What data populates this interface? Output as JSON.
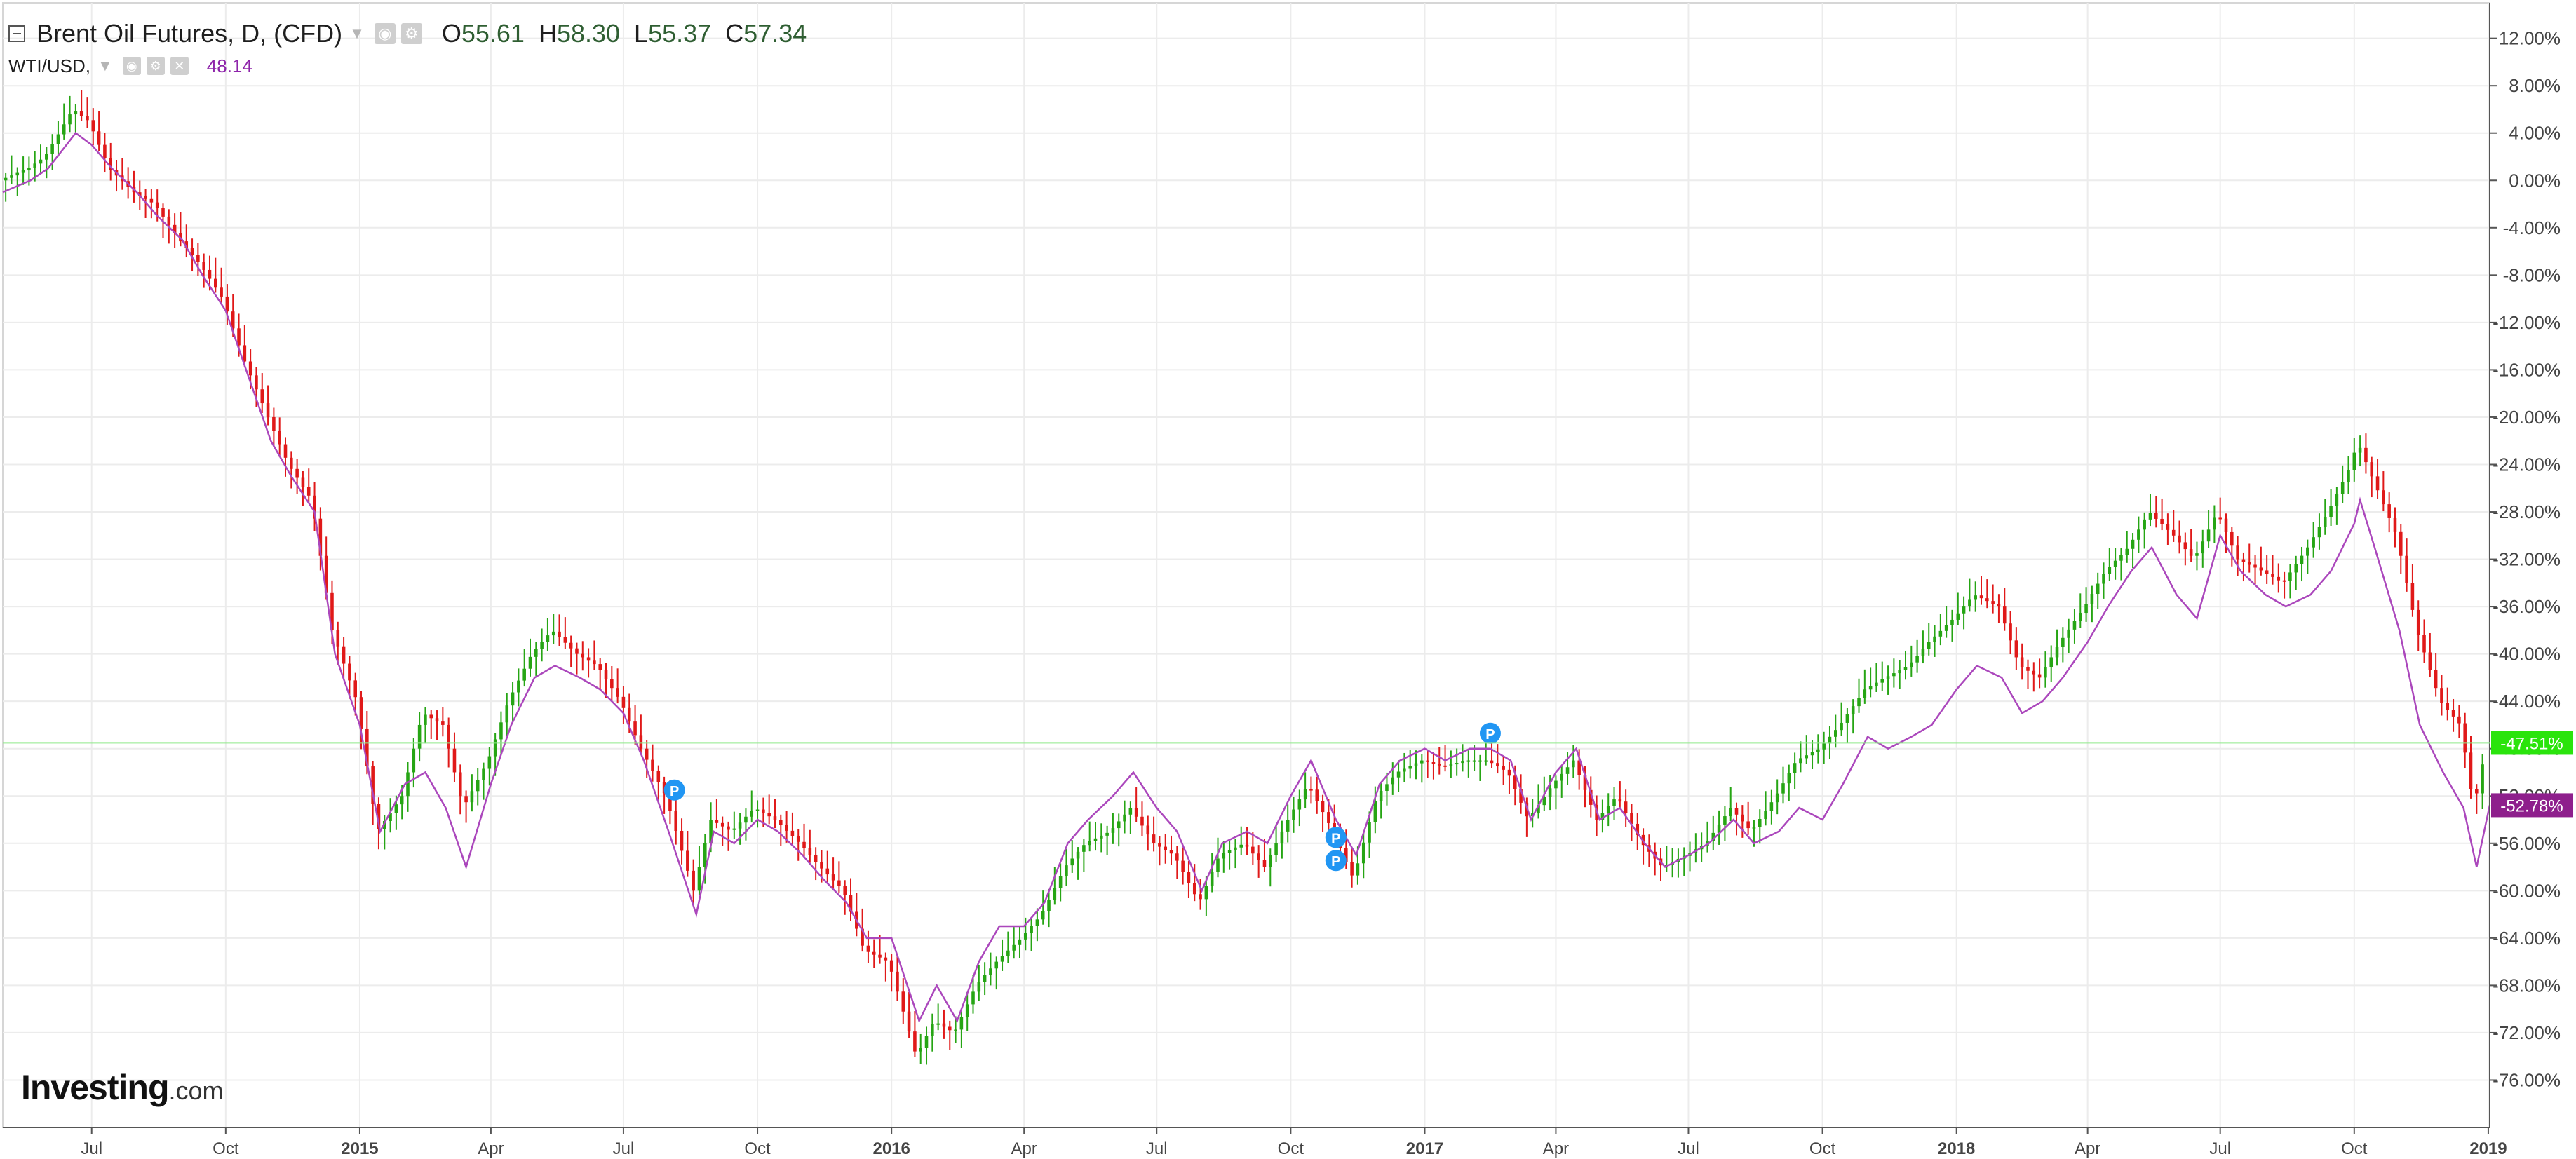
{
  "legend": {
    "main_title": "Brent Oil Futures, D, (CFD)",
    "ohlc": {
      "o_label": "O",
      "o": "55.61",
      "h_label": "H",
      "h": "58.30",
      "l_label": "L",
      "l": "55.37",
      "c_label": "C",
      "c": "57.34"
    },
    "compare_title": "WTI/USD,",
    "compare_value": "48.14"
  },
  "brand": {
    "main": "Investing",
    "domain": ".com"
  },
  "colors": {
    "up_candle": "#26a514",
    "down_candle": "#e01919",
    "wti_line": "#ab47bc",
    "brent_label_bg": "#2ae40c",
    "wti_label_bg": "#8e1f8c",
    "grid": "#ececec",
    "axis_text": "#444444",
    "marker": "#2196f3"
  },
  "chart_data": {
    "type": "line",
    "title": "",
    "xlabel": "",
    "ylabel": "",
    "x_ticks": [
      "Jul",
      "Oct",
      "2015",
      "Apr",
      "Jul",
      "Oct",
      "2016",
      "Apr",
      "Jul",
      "Oct",
      "2017",
      "Apr",
      "Jul",
      "Oct",
      "2018",
      "Apr",
      "Jul",
      "Oct",
      "2019"
    ],
    "x_ticks_bold": [
      "2015",
      "2016",
      "2017",
      "2018",
      "2019"
    ],
    "y_ticks": [
      "12.00%",
      "8.00%",
      "4.00%",
      "0.00%",
      "-4.00%",
      "-8.00%",
      "-12.00%",
      "-16.00%",
      "-20.00%",
      "-24.00%",
      "-28.00%",
      "-32.00%",
      "-36.00%",
      "-40.00%",
      "-44.00%",
      "-48.00%",
      "-52.00%",
      "-56.00%",
      "-60.00%",
      "-64.00%",
      "-68.00%",
      "-72.00%",
      "-76.00%"
    ],
    "ylim": [
      -80,
      15
    ],
    "x_range": [
      "2014-05-01",
      "2019-01-02"
    ],
    "series": [
      {
        "name": "Brent Oil Futures",
        "style": "candlestick",
        "points": [
          [
            "2014-05-01",
            0
          ],
          [
            "2014-05-20",
            1
          ],
          [
            "2014-06-01",
            2
          ],
          [
            "2014-06-20",
            6
          ],
          [
            "2014-07-01",
            5
          ],
          [
            "2014-07-15",
            1
          ],
          [
            "2014-08-01",
            -1
          ],
          [
            "2014-08-15",
            -2
          ],
          [
            "2014-09-01",
            -5
          ],
          [
            "2014-09-15",
            -7
          ],
          [
            "2014-10-01",
            -10
          ],
          [
            "2014-10-15",
            -15
          ],
          [
            "2014-11-01",
            -20
          ],
          [
            "2014-11-15",
            -24
          ],
          [
            "2014-12-01",
            -27
          ],
          [
            "2014-12-15",
            -38
          ],
          [
            "2015-01-01",
            -44
          ],
          [
            "2015-01-15",
            -55
          ],
          [
            "2015-02-01",
            -52
          ],
          [
            "2015-02-15",
            -45
          ],
          [
            "2015-03-01",
            -46
          ],
          [
            "2015-03-15",
            -53
          ],
          [
            "2015-04-01",
            -49
          ],
          [
            "2015-04-15",
            -44
          ],
          [
            "2015-05-01",
            -40
          ],
          [
            "2015-05-15",
            -38
          ],
          [
            "2015-06-01",
            -40
          ],
          [
            "2015-06-15",
            -41
          ],
          [
            "2015-07-01",
            -44
          ],
          [
            "2015-07-15",
            -48
          ],
          [
            "2015-08-01",
            -52
          ],
          [
            "2015-08-20",
            -60
          ],
          [
            "2015-09-01",
            -54
          ],
          [
            "2015-09-15",
            -55
          ],
          [
            "2015-10-01",
            -53
          ],
          [
            "2015-10-15",
            -54
          ],
          [
            "2015-11-01",
            -56
          ],
          [
            "2015-11-15",
            -58
          ],
          [
            "2015-12-01",
            -60
          ],
          [
            "2015-12-15",
            -65
          ],
          [
            "2016-01-01",
            -66
          ],
          [
            "2016-01-20",
            -74
          ],
          [
            "2016-02-01",
            -71
          ],
          [
            "2016-02-15",
            -72
          ],
          [
            "2016-03-01",
            -68
          ],
          [
            "2016-03-15",
            -66
          ],
          [
            "2016-04-01",
            -64
          ],
          [
            "2016-04-15",
            -62
          ],
          [
            "2016-05-01",
            -58
          ],
          [
            "2016-05-15",
            -56
          ],
          [
            "2016-06-01",
            -55
          ],
          [
            "2016-06-15",
            -53
          ],
          [
            "2016-07-01",
            -56
          ],
          [
            "2016-07-15",
            -57
          ],
          [
            "2016-08-01",
            -61
          ],
          [
            "2016-08-15",
            -57
          ],
          [
            "2016-09-01",
            -56
          ],
          [
            "2016-09-15",
            -58
          ],
          [
            "2016-10-01",
            -54
          ],
          [
            "2016-10-15",
            -51
          ],
          [
            "2016-11-01",
            -55
          ],
          [
            "2016-11-15",
            -59
          ],
          [
            "2016-12-01",
            -52
          ],
          [
            "2016-12-15",
            -50
          ],
          [
            "2017-01-01",
            -49
          ],
          [
            "2017-01-15",
            -49.5
          ],
          [
            "2017-02-01",
            -49
          ],
          [
            "2017-02-15",
            -49
          ],
          [
            "2017-03-01",
            -50
          ],
          [
            "2017-03-15",
            -54
          ],
          [
            "2017-04-01",
            -51
          ],
          [
            "2017-04-15",
            -49
          ],
          [
            "2017-05-01",
            -54
          ],
          [
            "2017-05-15",
            -52
          ],
          [
            "2017-06-01",
            -56
          ],
          [
            "2017-06-15",
            -58
          ],
          [
            "2017-07-01",
            -57
          ],
          [
            "2017-07-15",
            -56
          ],
          [
            "2017-08-01",
            -53
          ],
          [
            "2017-08-15",
            -55
          ],
          [
            "2017-09-01",
            -52
          ],
          [
            "2017-09-15",
            -49
          ],
          [
            "2017-10-01",
            -48
          ],
          [
            "2017-10-15",
            -46
          ],
          [
            "2017-11-01",
            -43
          ],
          [
            "2017-11-15",
            -42
          ],
          [
            "2017-12-01",
            -41
          ],
          [
            "2017-12-15",
            -39
          ],
          [
            "2018-01-01",
            -37
          ],
          [
            "2018-01-15",
            -35
          ],
          [
            "2018-02-01",
            -36
          ],
          [
            "2018-02-15",
            -41
          ],
          [
            "2018-03-01",
            -42
          ],
          [
            "2018-03-15",
            -39
          ],
          [
            "2018-04-01",
            -36
          ],
          [
            "2018-04-15",
            -33
          ],
          [
            "2018-05-01",
            -31
          ],
          [
            "2018-05-15",
            -28
          ],
          [
            "2018-06-01",
            -30
          ],
          [
            "2018-06-15",
            -32
          ],
          [
            "2018-07-01",
            -28
          ],
          [
            "2018-07-15",
            -32
          ],
          [
            "2018-08-01",
            -33
          ],
          [
            "2018-08-15",
            -34
          ],
          [
            "2018-09-01",
            -31
          ],
          [
            "2018-09-15",
            -28
          ],
          [
            "2018-10-01",
            -24
          ],
          [
            "2018-10-05",
            -22
          ],
          [
            "2018-10-15",
            -25
          ],
          [
            "2018-11-01",
            -30
          ],
          [
            "2018-11-15",
            -38
          ],
          [
            "2018-12-01",
            -44
          ],
          [
            "2018-12-15",
            -46
          ],
          [
            "2018-12-24",
            -53
          ],
          [
            "2019-01-02",
            -47.5
          ]
        ]
      },
      {
        "name": "WTI/USD",
        "style": "line",
        "points": [
          [
            "2014-05-01",
            -1
          ],
          [
            "2014-05-20",
            0
          ],
          [
            "2014-06-01",
            1
          ],
          [
            "2014-06-20",
            4
          ],
          [
            "2014-07-01",
            3
          ],
          [
            "2014-07-15",
            1
          ],
          [
            "2014-08-01",
            -1
          ],
          [
            "2014-08-15",
            -3
          ],
          [
            "2014-09-01",
            -5
          ],
          [
            "2014-09-15",
            -8
          ],
          [
            "2014-10-01",
            -11
          ],
          [
            "2014-10-15",
            -16
          ],
          [
            "2014-11-01",
            -22
          ],
          [
            "2014-11-15",
            -25
          ],
          [
            "2014-12-01",
            -28
          ],
          [
            "2014-12-15",
            -40
          ],
          [
            "2015-01-01",
            -46
          ],
          [
            "2015-01-15",
            -55
          ],
          [
            "2015-02-01",
            -51
          ],
          [
            "2015-02-15",
            -50
          ],
          [
            "2015-03-01",
            -53
          ],
          [
            "2015-03-15",
            -58
          ],
          [
            "2015-04-01",
            -51
          ],
          [
            "2015-04-15",
            -46
          ],
          [
            "2015-05-01",
            -42
          ],
          [
            "2015-05-15",
            -41
          ],
          [
            "2015-06-01",
            -42
          ],
          [
            "2015-06-15",
            -43
          ],
          [
            "2015-07-01",
            -45
          ],
          [
            "2015-07-15",
            -49
          ],
          [
            "2015-08-01",
            -55
          ],
          [
            "2015-08-20",
            -62
          ],
          [
            "2015-09-01",
            -55
          ],
          [
            "2015-09-15",
            -56
          ],
          [
            "2015-10-01",
            -54
          ],
          [
            "2015-10-15",
            -55
          ],
          [
            "2015-11-01",
            -57
          ],
          [
            "2015-11-15",
            -59
          ],
          [
            "2015-12-01",
            -61
          ],
          [
            "2015-12-15",
            -64
          ],
          [
            "2016-01-01",
            -64
          ],
          [
            "2016-01-20",
            -71
          ],
          [
            "2016-02-01",
            -68
          ],
          [
            "2016-02-15",
            -71
          ],
          [
            "2016-03-01",
            -66
          ],
          [
            "2016-03-15",
            -63
          ],
          [
            "2016-04-01",
            -63
          ],
          [
            "2016-04-15",
            -61
          ],
          [
            "2016-05-01",
            -56
          ],
          [
            "2016-05-15",
            -54
          ],
          [
            "2016-06-01",
            -52
          ],
          [
            "2016-06-15",
            -50
          ],
          [
            "2016-07-01",
            -53
          ],
          [
            "2016-07-15",
            -55
          ],
          [
            "2016-08-01",
            -60
          ],
          [
            "2016-08-15",
            -56
          ],
          [
            "2016-09-01",
            -55
          ],
          [
            "2016-09-15",
            -56
          ],
          [
            "2016-10-01",
            -52
          ],
          [
            "2016-10-15",
            -49
          ],
          [
            "2016-11-01",
            -54
          ],
          [
            "2016-11-15",
            -57
          ],
          [
            "2016-12-01",
            -51
          ],
          [
            "2016-12-15",
            -49
          ],
          [
            "2017-01-01",
            -48
          ],
          [
            "2017-01-15",
            -49
          ],
          [
            "2017-02-01",
            -48
          ],
          [
            "2017-02-15",
            -48
          ],
          [
            "2017-03-01",
            -49
          ],
          [
            "2017-03-15",
            -54
          ],
          [
            "2017-04-01",
            -50
          ],
          [
            "2017-04-15",
            -48
          ],
          [
            "2017-05-01",
            -54
          ],
          [
            "2017-05-15",
            -53
          ],
          [
            "2017-06-01",
            -56
          ],
          [
            "2017-06-15",
            -58
          ],
          [
            "2017-07-01",
            -57
          ],
          [
            "2017-07-15",
            -56
          ],
          [
            "2017-08-01",
            -54
          ],
          [
            "2017-08-15",
            -56
          ],
          [
            "2017-09-01",
            -55
          ],
          [
            "2017-09-15",
            -53
          ],
          [
            "2017-10-01",
            -54
          ],
          [
            "2017-10-15",
            -51
          ],
          [
            "2017-11-01",
            -47
          ],
          [
            "2017-11-15",
            -48
          ],
          [
            "2017-12-01",
            -47
          ],
          [
            "2017-12-15",
            -46
          ],
          [
            "2018-01-01",
            -43
          ],
          [
            "2018-01-15",
            -41
          ],
          [
            "2018-02-01",
            -42
          ],
          [
            "2018-02-15",
            -45
          ],
          [
            "2018-03-01",
            -44
          ],
          [
            "2018-03-15",
            -42
          ],
          [
            "2018-04-01",
            -39
          ],
          [
            "2018-04-15",
            -36
          ],
          [
            "2018-05-01",
            -33
          ],
          [
            "2018-05-15",
            -31
          ],
          [
            "2018-06-01",
            -35
          ],
          [
            "2018-06-15",
            -37
          ],
          [
            "2018-07-01",
            -30
          ],
          [
            "2018-07-15",
            -33
          ],
          [
            "2018-08-01",
            -35
          ],
          [
            "2018-08-15",
            -36
          ],
          [
            "2018-09-01",
            -35
          ],
          [
            "2018-09-15",
            -33
          ],
          [
            "2018-10-01",
            -29
          ],
          [
            "2018-10-05",
            -27
          ],
          [
            "2018-10-15",
            -31
          ],
          [
            "2018-11-01",
            -38
          ],
          [
            "2018-11-15",
            -46
          ],
          [
            "2018-12-01",
            -50
          ],
          [
            "2018-12-15",
            -53
          ],
          [
            "2018-12-24",
            -58
          ],
          [
            "2019-01-02",
            -52.78
          ]
        ]
      }
    ],
    "last_value_labels": [
      {
        "series": "Brent Oil Futures",
        "text": "-47.51%",
        "value": -47.51
      },
      {
        "series": "WTI/USD",
        "text": "-52.78%",
        "value": -52.78
      }
    ],
    "event_markers": [
      {
        "label": "P",
        "date": "2015-08-05",
        "value": -51.5
      },
      {
        "label": "P",
        "date": "2016-11-01",
        "value": -55.5
      },
      {
        "label": "P",
        "date": "2016-11-01",
        "value": -56.5
      },
      {
        "label": "P",
        "date": "2017-02-15",
        "value": -46.7
      }
    ],
    "grid": true,
    "legend_position": "top-left"
  }
}
